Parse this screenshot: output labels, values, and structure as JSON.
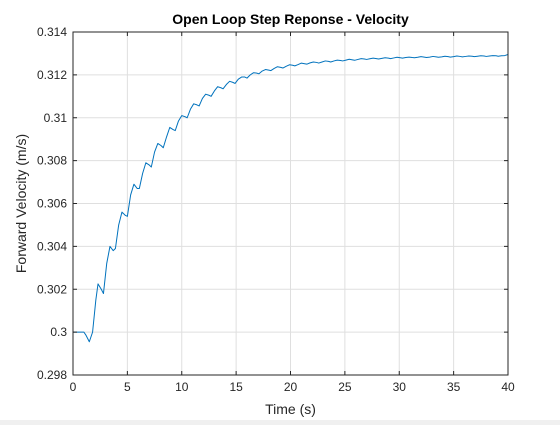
{
  "chart_data": {
    "type": "line",
    "title": "Open Loop Step Reponse - Velocity",
    "xlabel": "Time (s)",
    "ylabel": "Forward Velocity (m/s)",
    "xlim": [
      0,
      40
    ],
    "ylim": [
      0.298,
      0.314
    ],
    "grid": true,
    "legend": "none",
    "colors": {
      "line": "#0072bd",
      "axis": "#262626",
      "grid": "#dfdfdf",
      "background": "#ffffff"
    },
    "xticks": [
      0,
      5,
      10,
      15,
      20,
      25,
      30,
      35,
      40
    ],
    "xtick_labels": [
      "0",
      "5",
      "10",
      "15",
      "20",
      "25",
      "30",
      "35",
      "40"
    ],
    "yticks": [
      0.298,
      0.3,
      0.302,
      0.304,
      0.306,
      0.308,
      0.31,
      0.312,
      0.314
    ],
    "ytick_labels": [
      "0.298",
      "0.3",
      "0.302",
      "0.304",
      "0.306",
      "0.308",
      "0.31",
      "0.312",
      "0.314"
    ],
    "series": [
      {
        "x": [
          0,
          0.5,
          1.0,
          1.2,
          1.5,
          1.8,
          2.1,
          2.3,
          2.6,
          2.8,
          3.1,
          3.4,
          3.7,
          3.9,
          4.2,
          4.5,
          4.8,
          5.0,
          5.3,
          5.6,
          5.9,
          6.1,
          6.4,
          6.7,
          7.0,
          7.2,
          7.5,
          7.8,
          8.1,
          8.3,
          8.6,
          8.9,
          9.2,
          9.4,
          9.7,
          10.0,
          10.3,
          10.5,
          10.8,
          11.1,
          11.4,
          11.6,
          11.9,
          12.2,
          12.5,
          12.7,
          13.0,
          13.3,
          13.6,
          13.8,
          14.1,
          14.4,
          14.7,
          14.9,
          15.2,
          15.5,
          15.8,
          16.0,
          16.3,
          16.6,
          16.9,
          17.1,
          17.4,
          17.7,
          18.0,
          18.2,
          18.5,
          18.8,
          19.1,
          19.3,
          19.6,
          19.9,
          20.2,
          20.4,
          20.7,
          21.0,
          21.3,
          21.5,
          21.8,
          22.1,
          22.4,
          22.6,
          22.9,
          23.2,
          23.5,
          23.7,
          24.0,
          24.3,
          24.6,
          24.8,
          25.1,
          25.4,
          25.7,
          25.9,
          26.2,
          26.5,
          26.8,
          27.0,
          27.3,
          27.6,
          27.9,
          28.1,
          28.4,
          28.7,
          29.0,
          29.2,
          29.5,
          29.8,
          30.1,
          30.3,
          30.6,
          30.9,
          31.2,
          31.4,
          31.7,
          32.0,
          32.3,
          32.5,
          32.8,
          33.1,
          33.4,
          33.6,
          33.9,
          34.2,
          34.5,
          34.7,
          35.0,
          35.3,
          35.6,
          35.8,
          36.1,
          36.4,
          36.7,
          36.9,
          37.2,
          37.5,
          37.8,
          38.0,
          38.3,
          38.6,
          38.9,
          39.1,
          39.4,
          39.7,
          40.0
        ],
        "y": [
          0.3,
          0.3,
          0.3,
          0.29985,
          0.29955,
          0.3,
          0.3015,
          0.30225,
          0.302,
          0.3018,
          0.3032,
          0.304,
          0.3038,
          0.3039,
          0.305,
          0.3056,
          0.30545,
          0.3054,
          0.3064,
          0.3069,
          0.3067,
          0.3067,
          0.3074,
          0.3079,
          0.3078,
          0.3077,
          0.3084,
          0.3088,
          0.3087,
          0.3086,
          0.3091,
          0.30955,
          0.30945,
          0.3094,
          0.30985,
          0.3101,
          0.31005,
          0.31,
          0.3104,
          0.31065,
          0.3106,
          0.31055,
          0.3109,
          0.3111,
          0.31105,
          0.311,
          0.31125,
          0.31145,
          0.3114,
          0.31135,
          0.31155,
          0.3117,
          0.31165,
          0.3116,
          0.3118,
          0.3119,
          0.3119,
          0.31185,
          0.312,
          0.3121,
          0.31208,
          0.31205,
          0.31218,
          0.31225,
          0.31222,
          0.3122,
          0.3123,
          0.31238,
          0.31235,
          0.31232,
          0.3124,
          0.31247,
          0.31245,
          0.31242,
          0.31248,
          0.31255,
          0.31252,
          0.3125,
          0.31256,
          0.3126,
          0.31258,
          0.31255,
          0.3126,
          0.31265,
          0.31263,
          0.3126,
          0.31265,
          0.31269,
          0.31267,
          0.31265,
          0.31269,
          0.31273,
          0.3127,
          0.31268,
          0.31272,
          0.31276,
          0.31274,
          0.31272,
          0.31275,
          0.31278,
          0.31276,
          0.31274,
          0.31277,
          0.3128,
          0.31278,
          0.31276,
          0.31279,
          0.31282,
          0.3128,
          0.31278,
          0.31281,
          0.31283,
          0.31281,
          0.3128,
          0.31282,
          0.31285,
          0.31283,
          0.31281,
          0.31283,
          0.31286,
          0.31284,
          0.31282,
          0.31284,
          0.31287,
          0.31285,
          0.31283,
          0.31285,
          0.31288,
          0.31286,
          0.31284,
          0.31286,
          0.31288,
          0.31287,
          0.31285,
          0.31287,
          0.31289,
          0.31288,
          0.31286,
          0.31288,
          0.3129,
          0.31289,
          0.31287,
          0.31289,
          0.3129,
          0.31295
        ]
      }
    ]
  }
}
